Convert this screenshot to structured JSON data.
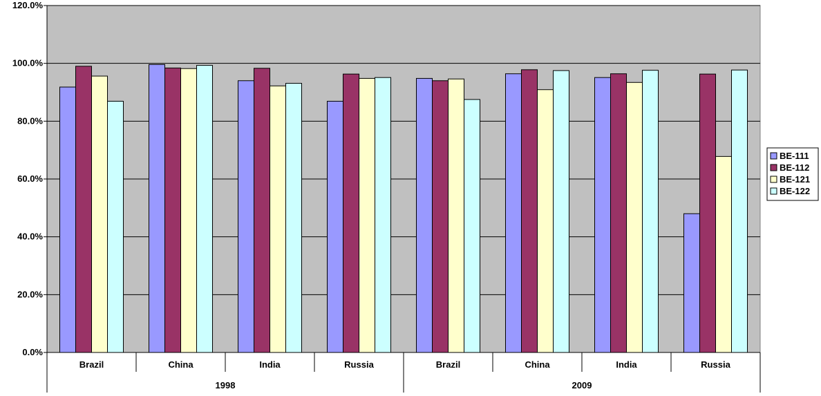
{
  "chart_data": {
    "type": "bar",
    "groups": [
      {
        "label": "1998",
        "categories": [
          "Brazil",
          "China",
          "India",
          "Russia"
        ]
      },
      {
        "label": "2009",
        "categories": [
          "Brazil",
          "China",
          "India",
          "Russia"
        ]
      }
    ],
    "series": [
      {
        "name": "BE-111",
        "color": "#9999FF",
        "values": [
          91.8,
          99.6,
          94.0,
          86.9,
          94.8,
          96.4,
          95.1,
          48.0
        ]
      },
      {
        "name": "BE-112",
        "color": "#993366",
        "values": [
          99.0,
          98.4,
          98.3,
          96.3,
          94.0,
          97.8,
          96.4,
          96.3
        ]
      },
      {
        "name": "BE-121",
        "color": "#FFFFCC",
        "values": [
          95.6,
          98.2,
          92.2,
          94.8,
          94.6,
          90.9,
          93.4,
          67.8
        ]
      },
      {
        "name": "BE-122",
        "color": "#CCFFFF",
        "values": [
          86.9,
          99.3,
          93.1,
          95.1,
          87.5,
          97.5,
          97.6,
          97.7
        ]
      }
    ],
    "yticks": [
      "0.0%",
      "20.0%",
      "40.0%",
      "60.0%",
      "80.0%",
      "100.0%",
      "120.0%"
    ],
    "ylim": [
      0,
      120
    ],
    "grid": true,
    "legend_position": "right",
    "plot_background": "#C0C0C0"
  }
}
